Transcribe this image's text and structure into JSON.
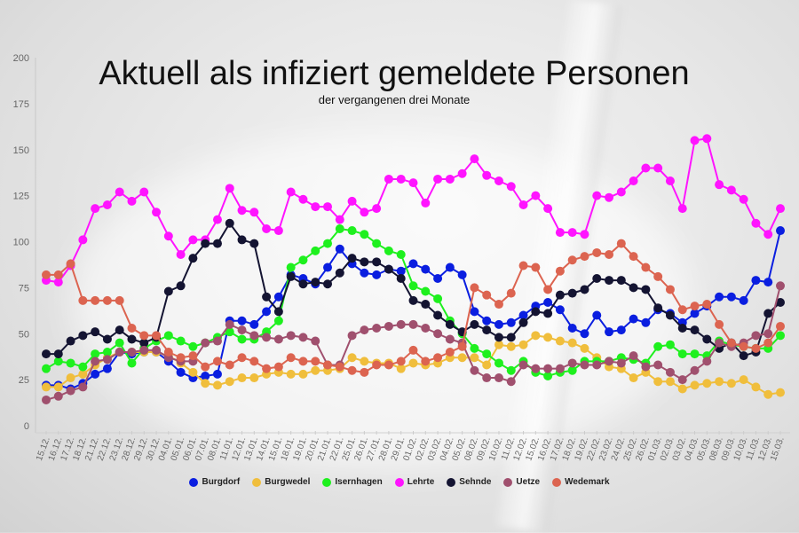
{
  "chart_data": {
    "type": "line",
    "title": "Aktuell als infiziert gemeldete Personen",
    "subtitle": "der vergangenen drei Monate",
    "xlabel": "",
    "ylabel": "",
    "ylim": [
      0,
      200
    ],
    "yticks": [
      0,
      25,
      50,
      75,
      100,
      125,
      150,
      175,
      200
    ],
    "legend_position": "bottom",
    "categories": [
      "15.12.",
      "16.12.",
      "17.12.",
      "18.12.",
      "21.12.",
      "22.12.",
      "23.12.",
      "28.12.",
      "29.12.",
      "30.12.",
      "04.01.",
      "05.01.",
      "06.01.",
      "07.01.",
      "08.01.",
      "11.01.",
      "12.01.",
      "13.01.",
      "14.01.",
      "15.01.",
      "18.01.",
      "19.01.",
      "20.01.",
      "21.01.",
      "22.01.",
      "25.01.",
      "26.01.",
      "27.01.",
      "28.01.",
      "29.01.",
      "01.02.",
      "02.02.",
      "03.02.",
      "04.02.",
      "05.02.",
      "08.02.",
      "09.02.",
      "10.02.",
      "11.02.",
      "12.02.",
      "15.02.",
      "16.02.",
      "17.02.",
      "18.02.",
      "19.02.",
      "22.02.",
      "23.02.",
      "24.02.",
      "25.02.",
      "26.02.",
      "01.03.",
      "02.03.",
      "03.02.",
      "04.03.",
      "05.03.",
      "08.03.",
      "09.03.",
      "10.03.",
      "11.03.",
      "12.03.",
      "15.03."
    ],
    "series": [
      {
        "name": "Burgdorf",
        "color": "#0a1ee0",
        "values": [
          22,
          22,
          20,
          23,
          28,
          31,
          40,
          39,
          40,
          40,
          35,
          29,
          26,
          27,
          28,
          57,
          57,
          55,
          62,
          70,
          82,
          80,
          77,
          86,
          96,
          88,
          83,
          82,
          85,
          84,
          88,
          85,
          80,
          86,
          82,
          62,
          57,
          55,
          56,
          60,
          65,
          67,
          63,
          53,
          50,
          60,
          51,
          52,
          58,
          56,
          63,
          61,
          56,
          61,
          65,
          70,
          70,
          68,
          79,
          78,
          106
        ]
      },
      {
        "name": "Burgwedel",
        "color": "#f0be3c",
        "values": [
          21,
          21,
          26,
          28,
          33,
          37,
          40,
          40,
          40,
          40,
          38,
          34,
          29,
          23,
          22,
          24,
          26,
          26,
          28,
          29,
          28,
          28,
          30,
          30,
          31,
          37,
          35,
          34,
          34,
          31,
          34,
          33,
          34,
          37,
          37,
          37,
          33,
          44,
          43,
          44,
          49,
          48,
          46,
          45,
          42,
          37,
          32,
          31,
          26,
          29,
          24,
          24,
          20,
          22,
          23,
          24,
          23,
          25,
          21,
          17,
          18
        ]
      },
      {
        "name": "Isernhagen",
        "color": "#1ef01e",
        "values": [
          31,
          35,
          34,
          32,
          39,
          40,
          45,
          34,
          42,
          46,
          49,
          46,
          43,
          45,
          48,
          51,
          47,
          47,
          51,
          57,
          86,
          90,
          95,
          99,
          107,
          106,
          104,
          99,
          95,
          93,
          76,
          73,
          69,
          57,
          50,
          42,
          39,
          34,
          30,
          35,
          29,
          27,
          29,
          30,
          35,
          35,
          35,
          37,
          36,
          34,
          43,
          44,
          39,
          39,
          38,
          46,
          44,
          43,
          42,
          42,
          49
        ]
      },
      {
        "name": "Lehrte",
        "color": "#ff14ff",
        "values": [
          79,
          78,
          87,
          101,
          118,
          120,
          127,
          122,
          127,
          116,
          103,
          93,
          101,
          101,
          112,
          129,
          117,
          116,
          107,
          106,
          127,
          123,
          119,
          119,
          112,
          122,
          116,
          118,
          134,
          134,
          132,
          121,
          134,
          134,
          137,
          145,
          136,
          133,
          130,
          120,
          125,
          118,
          105,
          105,
          104,
          125,
          124,
          127,
          133,
          140,
          140,
          133,
          118,
          155,
          156,
          131,
          128,
          123,
          110,
          104,
          118
        ]
      },
      {
        "name": "Sehnde",
        "color": "#141432",
        "values": [
          39,
          39,
          46,
          49,
          51,
          47,
          52,
          47,
          45,
          48,
          73,
          76,
          91,
          99,
          99,
          110,
          101,
          99,
          70,
          62,
          81,
          77,
          78,
          77,
          83,
          91,
          89,
          89,
          85,
          80,
          68,
          66,
          60,
          55,
          51,
          55,
          52,
          48,
          48,
          56,
          62,
          61,
          71,
          72,
          74,
          80,
          79,
          79,
          75,
          74,
          64,
          60,
          53,
          52,
          47,
          42,
          45,
          38,
          40,
          61,
          67
        ]
      },
      {
        "name": "Uetze",
        "color": "#a0506e",
        "values": [
          14,
          16,
          19,
          21,
          35,
          36,
          40,
          40,
          41,
          41,
          37,
          35,
          35,
          45,
          46,
          55,
          52,
          49,
          48,
          47,
          49,
          48,
          46,
          33,
          33,
          49,
          52,
          53,
          54,
          55,
          55,
          53,
          50,
          47,
          45,
          30,
          26,
          26,
          24,
          33,
          31,
          31,
          31,
          34,
          33,
          33,
          35,
          34,
          38,
          32,
          33,
          29,
          25,
          30,
          35,
          45,
          43,
          45,
          49,
          50,
          76
        ]
      },
      {
        "name": "Wedemark",
        "color": "#dc6450",
        "values": [
          82,
          82,
          88,
          68,
          68,
          68,
          68,
          53,
          49,
          49,
          40,
          37,
          38,
          32,
          35,
          33,
          37,
          35,
          31,
          32,
          37,
          35,
          35,
          33,
          32,
          30,
          29,
          33,
          33,
          35,
          41,
          35,
          37,
          40,
          43,
          75,
          71,
          66,
          72,
          87,
          86,
          74,
          84,
          90,
          92,
          94,
          93,
          99,
          92,
          86,
          81,
          74,
          63,
          65,
          66,
          55,
          45,
          43,
          42,
          45,
          54
        ]
      }
    ]
  }
}
